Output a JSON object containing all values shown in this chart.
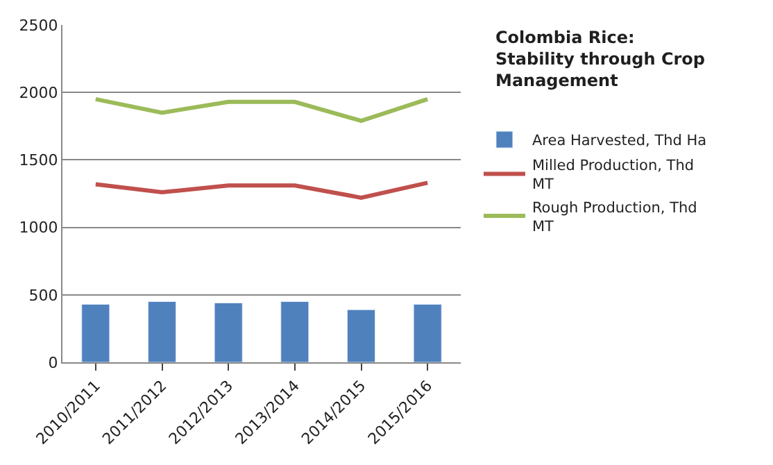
{
  "chart_data": {
    "type": "bar",
    "title": "Colombia Rice:\nStability through Crop\nManagement",
    "categories": [
      "2010/2011",
      "2011/2012",
      "2012/2013",
      "2013/2014",
      "2014/2015",
      "2015/2016"
    ],
    "series": [
      {
        "name": "Area Harvested, Thd Ha",
        "color": "#4f81bd",
        "values": [
          430,
          450,
          440,
          450,
          390,
          430
        ]
      },
      {
        "name": "Milled Production, Thd MT",
        "type": "line",
        "color": "#c0504d",
        "values": [
          1320,
          1260,
          1310,
          1310,
          1220,
          1330
        ]
      },
      {
        "name": "Rough Production, Thd MT",
        "type": "line",
        "color": "#9bbb59",
        "values": [
          1950,
          1850,
          1930,
          1930,
          1790,
          1950
        ]
      }
    ],
    "ylim": [
      0,
      2500
    ],
    "yticks": [
      0,
      500,
      1000,
      1500,
      2000,
      2500
    ],
    "grid": "y",
    "legend": "right",
    "marker": "none",
    "line_style": "solid"
  }
}
